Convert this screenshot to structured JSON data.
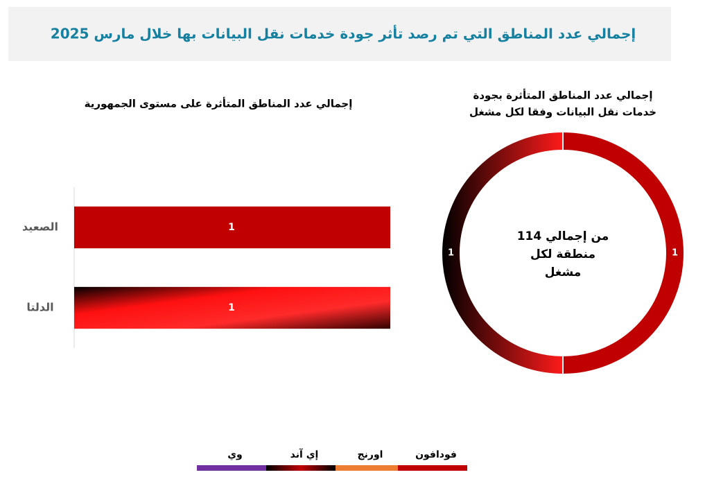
{
  "header": {
    "title": "إجمالي عدد المناطق التي تم رصد تأثر جودة خدمات نقل البيانات بها خلال مارس  2025"
  },
  "chart_data": [
    {
      "type": "barh",
      "title": "إجمالي عدد المناطق المتأثرة على مستوى الجمهورية",
      "categories": [
        "الصعيد",
        "الدلتا"
      ],
      "values": [
        1,
        1
      ],
      "colors": [
        "#c00000",
        [
          "#000000",
          "#ff1010",
          "#ff2a2a",
          "#300000"
        ]
      ],
      "xlim": [
        0,
        1
      ]
    },
    {
      "type": "donut",
      "title": [
        "إجمالي عدد المناطق المتأثرة بجودة",
        "خدمات نقل البيانات وفقا لكل مشغل"
      ],
      "center_text": [
        "من إجمالي 114",
        "منطقة لكل",
        "مشغل"
      ],
      "categories": [
        "فودافون",
        "إي آند"
      ],
      "values": [
        1,
        1
      ],
      "colors": [
        "#c00000",
        [
          "#000000",
          "#ff1a1a"
        ]
      ]
    }
  ],
  "legend": [
    {
      "name": "فودافون",
      "color": "#c00000"
    },
    {
      "name": "اورنج",
      "color": "#ed7d31"
    },
    {
      "name": "إي آند",
      "color": [
        "#000000",
        "#c00000",
        "#000000"
      ]
    },
    {
      "name": "وي",
      "color": "#7030a0"
    }
  ]
}
